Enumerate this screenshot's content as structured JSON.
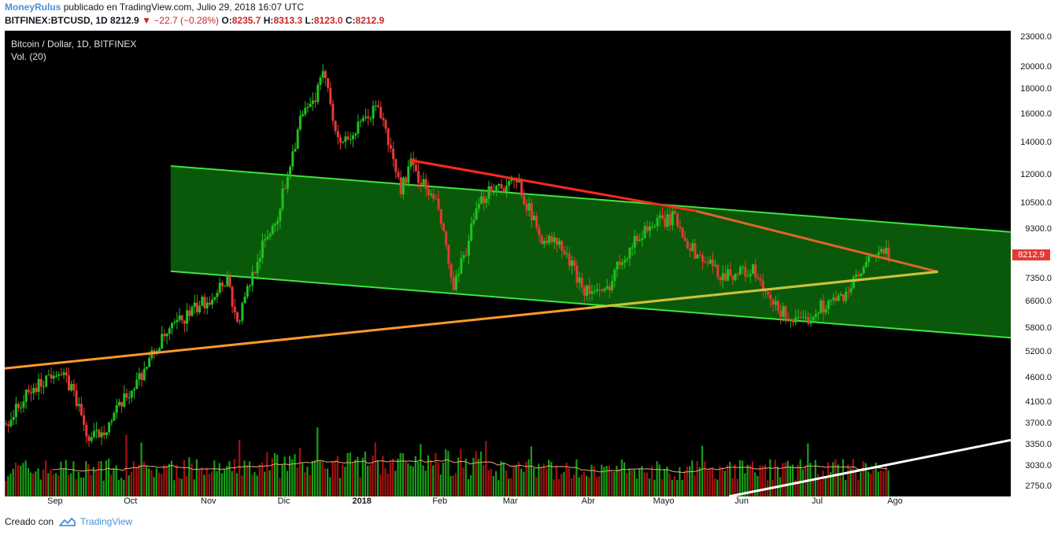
{
  "header": {
    "author": "MoneyRulus",
    "published_text": "publicado en TradingView.com, Julio 29, 2018 16:07 UTC",
    "symbol": "BITFINEX:BTCUSD, 1D",
    "last": "8212.9",
    "change": "−22.7 (−0.28%)",
    "o_label": "O:",
    "o": "8235.7",
    "h_label": "H:",
    "h": "8313.3",
    "l_label": "L:",
    "l": "8123.0",
    "c_label": "C:",
    "c": "8212.9"
  },
  "legend": {
    "title": "Bitcoin / Dollar, 1D, BITFINEX",
    "volume": "Vol. (20)"
  },
  "price_badge": "8212.9",
  "footer": {
    "created_with": "Creado con",
    "brand": "TradingView"
  },
  "colors": {
    "up": "#1fc11f",
    "down": "#e53935",
    "channel_fill": "#0b5e0b",
    "channel_line": "#3fe33f",
    "red_trend": "#ff2a1a",
    "orange_trend": "#ff9a2a",
    "white_trend": "#ffffff",
    "volume_ma": "#e8a878",
    "volume_up": "#15a015",
    "volume_down": "#a81010"
  },
  "chart_data": {
    "type": "line",
    "title": "Bitcoin / Dollar, 1D, BITFINEX",
    "y_scale": "log",
    "y_ticks": [
      2750,
      3030,
      3350,
      3700,
      4100,
      4600,
      5200,
      5800,
      6600,
      7350,
      8212.9,
      9300,
      10500,
      12000,
      14000,
      16000,
      18000,
      20000,
      23000
    ],
    "y_tick_labels": [
      "2750.0",
      "3030.0",
      "3350.0",
      "3700.0",
      "4100.0",
      "4600.0",
      "5200.0",
      "5800.0",
      "6600.0",
      "7350.0",
      "8212.9",
      "9300.0",
      "10500.0",
      "12000.0",
      "14000.0",
      "16000.0",
      "18000.0",
      "20000.0",
      "23000.0"
    ],
    "x_labels": [
      {
        "date": "2017-09-01",
        "label": "Sep",
        "bold": false
      },
      {
        "date": "2017-10-01",
        "label": "Oct",
        "bold": false
      },
      {
        "date": "2017-11-01",
        "label": "Nov",
        "bold": false
      },
      {
        "date": "2017-12-01",
        "label": "Dic",
        "bold": false
      },
      {
        "date": "2018-01-01",
        "label": "2018",
        "bold": true
      },
      {
        "date": "2018-02-01",
        "label": "Feb",
        "bold": false
      },
      {
        "date": "2018-03-01",
        "label": "Mar",
        "bold": false
      },
      {
        "date": "2018-04-01",
        "label": "Abr",
        "bold": false
      },
      {
        "date": "2018-05-01",
        "label": "Mayo",
        "bold": false
      },
      {
        "date": "2018-06-01",
        "label": "Jun",
        "bold": false
      },
      {
        "date": "2018-07-01",
        "label": "Jul",
        "bold": false
      },
      {
        "date": "2018-08-01",
        "label": "Ago",
        "bold": false
      }
    ],
    "x_range": [
      "2017-08-12",
      "2018-09-16"
    ],
    "y_range": [
      2620,
      23700
    ],
    "price_path": [
      [
        "2017-08-12",
        3700
      ],
      [
        "2017-08-20",
        4200
      ],
      [
        "2017-09-01",
        4800
      ],
      [
        "2017-09-08",
        4300
      ],
      [
        "2017-09-14",
        3400
      ],
      [
        "2017-09-22",
        3700
      ],
      [
        "2017-10-01",
        4350
      ],
      [
        "2017-10-12",
        5400
      ],
      [
        "2017-10-20",
        6000
      ],
      [
        "2017-11-01",
        6700
      ],
      [
        "2017-11-08",
        7400
      ],
      [
        "2017-11-12",
        5900
      ],
      [
        "2017-11-20",
        8100
      ],
      [
        "2017-11-28",
        9900
      ],
      [
        "2017-12-07",
        15500
      ],
      [
        "2017-12-12",
        16800
      ],
      [
        "2017-12-17",
        19500
      ],
      [
        "2017-12-22",
        14000
      ],
      [
        "2017-12-28",
        14500
      ],
      [
        "2018-01-07",
        16700
      ],
      [
        "2018-01-16",
        11200
      ],
      [
        "2018-01-20",
        12600
      ],
      [
        "2018-01-31",
        10200
      ],
      [
        "2018-02-06",
        6900
      ],
      [
        "2018-02-15",
        10000
      ],
      [
        "2018-02-20",
        11300
      ],
      [
        "2018-03-04",
        11500
      ],
      [
        "2018-03-12",
        9000
      ],
      [
        "2018-03-20",
        8600
      ],
      [
        "2018-03-30",
        7000
      ],
      [
        "2018-04-07",
        6800
      ],
      [
        "2018-04-13",
        8000
      ],
      [
        "2018-04-24",
        9400
      ],
      [
        "2018-05-05",
        9800
      ],
      [
        "2018-05-12",
        8400
      ],
      [
        "2018-05-23",
        7500
      ],
      [
        "2018-06-05",
        7600
      ],
      [
        "2018-06-12",
        6500
      ],
      [
        "2018-06-24",
        5900
      ],
      [
        "2018-07-01",
        6400
      ],
      [
        "2018-07-10",
        6700
      ],
      [
        "2018-07-17",
        7400
      ],
      [
        "2018-07-24",
        8300
      ],
      [
        "2018-07-29",
        8212.9
      ]
    ],
    "channel": {
      "upper": [
        [
          "2017-10-17",
          12500
        ],
        [
          "2018-09-16",
          9150
        ]
      ],
      "lower": [
        [
          "2017-10-17",
          7600
        ],
        [
          "2018-09-16",
          5550
        ]
      ]
    },
    "trendlines": [
      {
        "color": "red",
        "points": [
          [
            "2018-01-20",
            12850
          ],
          [
            "2018-05-14",
            10100
          ]
        ]
      },
      {
        "color": "orange-red",
        "points": [
          [
            "2018-05-14",
            10100
          ],
          [
            "2018-08-18",
            7580
          ]
        ]
      },
      {
        "color": "orange",
        "points": [
          [
            "2017-08-12",
            4800
          ],
          [
            "2018-08-18",
            7580
          ]
        ]
      },
      {
        "color": "white",
        "points": [
          [
            "2018-05-27",
            2620
          ],
          [
            "2018-09-16",
            3420
          ]
        ]
      }
    ],
    "volume": {
      "label": "Vol. (20)"
    },
    "last_price": 8212.9
  }
}
